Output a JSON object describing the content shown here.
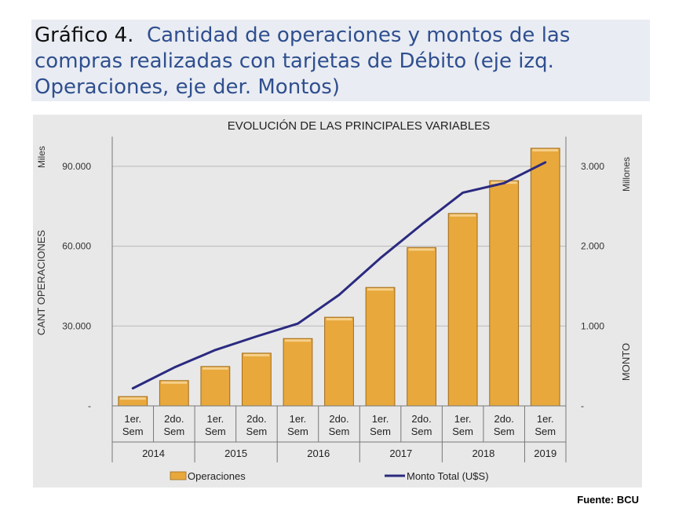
{
  "header": {
    "label": "Gráfico 4.",
    "title": "Cantidad de operaciones y montos de las compras realizadas con tarjetas de Débito (eje izq. Operaciones, eje der. Montos)"
  },
  "source": "Fuente: BCU",
  "colors": {
    "bar": "#e8a83c",
    "bar_edge": "#a06b1a",
    "line": "#2b2a80"
  },
  "chart_data": {
    "type": "bar",
    "title": "EVOLUCIÓN DE LAS PRINCIPALES VARIABLES",
    "categories": [
      "1er. Sem",
      "2do. Sem",
      "1er. Sem",
      "2do. Sem",
      "1er. Sem",
      "2do. Sem",
      "1er. Sem",
      "2do. Sem",
      "1er. Sem",
      "2do. Sem",
      "1er. Sem"
    ],
    "category_lines": [
      [
        "1er.",
        "Sem"
      ],
      [
        "2do.",
        "Sem"
      ],
      [
        "1er.",
        "Sem"
      ],
      [
        "2do.",
        "Sem"
      ],
      [
        "1er.",
        "Sem"
      ],
      [
        "2do.",
        "Sem"
      ],
      [
        "1er.",
        "Sem"
      ],
      [
        "2do.",
        "Sem"
      ],
      [
        "1er.",
        "Sem"
      ],
      [
        "2do.",
        "Sem"
      ],
      [
        "1er.",
        "Sem"
      ]
    ],
    "years": [
      {
        "label": "2014",
        "span": 2
      },
      {
        "label": "2015",
        "span": 2
      },
      {
        "label": "2016",
        "span": 2
      },
      {
        "label": "2017",
        "span": 2
      },
      {
        "label": "2018",
        "span": 2
      },
      {
        "label": "2019",
        "span": 1
      }
    ],
    "series": [
      {
        "name": "Operaciones",
        "type": "bar",
        "axis": "left",
        "values": [
          3500,
          9500,
          14800,
          19800,
          25300,
          33300,
          44500,
          59500,
          72300,
          84600,
          96800
        ]
      },
      {
        "name": "Monto Total (U$S)",
        "type": "line",
        "axis": "right",
        "values": [
          220,
          480,
          700,
          870,
          1030,
          1390,
          1850,
          2270,
          2670,
          2790,
          3050
        ]
      }
    ],
    "left_axis": {
      "title": "CANT OPERACIONES",
      "unit": "Miles",
      "ylim": [
        0,
        100000
      ],
      "ticks": [
        0,
        30000,
        60000,
        90000
      ],
      "tick_labels": [
        "-",
        "30.000",
        "60.000",
        "90.000"
      ]
    },
    "right_axis": {
      "title": "MONTO",
      "unit": "Millones",
      "ylim": [
        0,
        3333
      ],
      "ticks": [
        0,
        1000,
        2000,
        3000
      ],
      "tick_labels": [
        "-",
        "1.000",
        "2.000",
        "3.000"
      ]
    },
    "grid": true,
    "legend": "bottom"
  }
}
